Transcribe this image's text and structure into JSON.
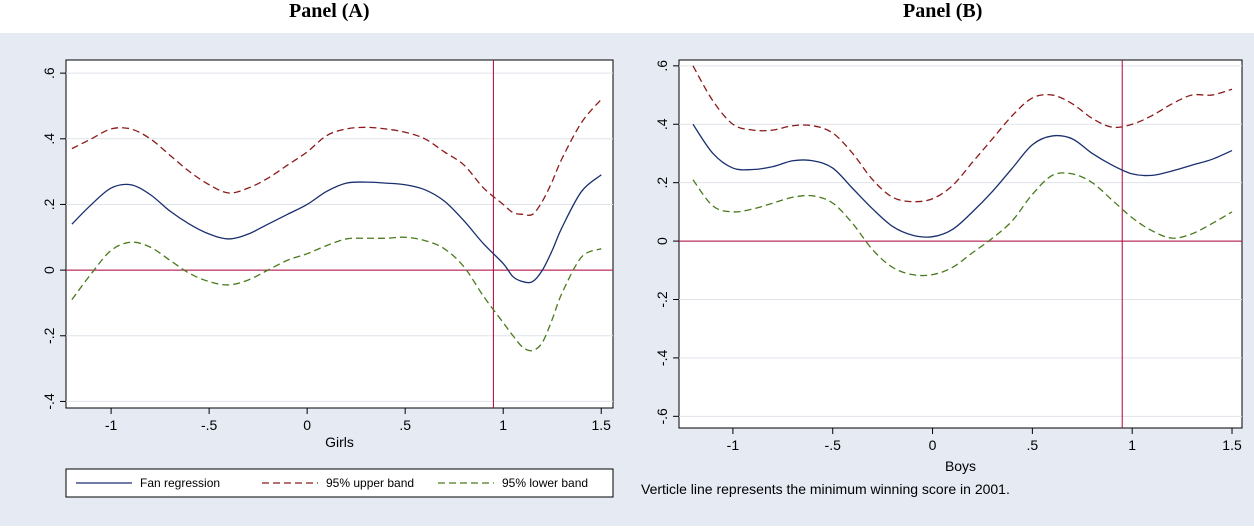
{
  "panels": {
    "a_title": "Panel (A)",
    "b_title": "Panel (B)"
  },
  "legend": [
    "Fan regression",
    "95% upper band",
    "95% lower band"
  ],
  "note": "Verticle line represents the minimum winning score in 2001.",
  "colors": {
    "fit": "#1a2f6e",
    "upper": "#8b1a1a",
    "lower": "#4a7a1e",
    "refline": "#b0003a",
    "grid": "#dfe3ea",
    "plotbg": "#ffffff",
    "panelbg": "#e5eaf3"
  },
  "chart_data": [
    {
      "type": "line",
      "title": "Panel (A)",
      "xlabel": "Girls",
      "ylabel": "",
      "xlim": [
        -1.23,
        1.56
      ],
      "ylim": [
        -0.42,
        0.64
      ],
      "xticks": [
        -1,
        -0.5,
        0,
        0.5,
        1,
        1.5
      ],
      "xtick_labels": [
        "-1",
        "-.5",
        "0",
        ".5",
        "1",
        "1.5"
      ],
      "yticks": [
        -0.4,
        -0.2,
        0,
        0.2,
        0.4,
        0.6
      ],
      "ytick_labels": [
        "-.4",
        "-.2",
        "0",
        ".2",
        ".4",
        ".6"
      ],
      "hline": 0,
      "vline": 0.95,
      "grid": true,
      "legend_position": "bottom",
      "x": [
        -1.2,
        -1.1,
        -1.0,
        -0.9,
        -0.8,
        -0.7,
        -0.6,
        -0.5,
        -0.4,
        -0.3,
        -0.2,
        -0.1,
        0.0,
        0.1,
        0.2,
        0.3,
        0.4,
        0.5,
        0.6,
        0.7,
        0.8,
        0.9,
        1.0,
        1.05,
        1.1,
        1.15,
        1.2,
        1.25,
        1.3,
        1.4,
        1.5
      ],
      "series": [
        {
          "name": "Fan regression",
          "style": "solid",
          "values": [
            0.14,
            0.2,
            0.25,
            0.26,
            0.23,
            0.18,
            0.14,
            0.11,
            0.095,
            0.11,
            0.14,
            0.17,
            0.2,
            0.24,
            0.265,
            0.268,
            0.265,
            0.26,
            0.245,
            0.21,
            0.15,
            0.08,
            0.02,
            -0.02,
            -0.035,
            -0.035,
            0.0,
            0.06,
            0.13,
            0.24,
            0.29
          ]
        },
        {
          "name": "95% upper band",
          "style": "dashed",
          "values": [
            0.37,
            0.4,
            0.43,
            0.43,
            0.4,
            0.35,
            0.3,
            0.26,
            0.235,
            0.25,
            0.28,
            0.32,
            0.36,
            0.41,
            0.43,
            0.435,
            0.43,
            0.42,
            0.4,
            0.36,
            0.32,
            0.25,
            0.2,
            0.175,
            0.17,
            0.17,
            0.21,
            0.27,
            0.34,
            0.45,
            0.52
          ]
        },
        {
          "name": "95% lower band",
          "style": "dashed",
          "values": [
            -0.09,
            -0.01,
            0.06,
            0.085,
            0.07,
            0.03,
            -0.01,
            -0.035,
            -0.045,
            -0.03,
            0.0,
            0.03,
            0.05,
            0.075,
            0.095,
            0.097,
            0.097,
            0.1,
            0.09,
            0.065,
            0.01,
            -0.08,
            -0.16,
            -0.2,
            -0.235,
            -0.245,
            -0.22,
            -0.15,
            -0.07,
            0.04,
            0.065
          ]
        }
      ]
    },
    {
      "type": "line",
      "title": "Panel (B)",
      "xlabel": "Boys",
      "ylabel": "",
      "xlim": [
        -1.27,
        1.55
      ],
      "ylim": [
        -0.64,
        0.62
      ],
      "xticks": [
        -1,
        -0.5,
        0,
        0.5,
        1,
        1.5
      ],
      "xtick_labels": [
        "-1",
        "-.5",
        "0",
        ".5",
        "1",
        "1.5"
      ],
      "yticks": [
        -0.6,
        -0.4,
        -0.2,
        0,
        0.2,
        0.4,
        0.6
      ],
      "ytick_labels": [
        "-.6",
        "-.4",
        "-.2",
        "0",
        ".2",
        ".4",
        ".6"
      ],
      "hline": 0,
      "vline": 0.95,
      "grid": true,
      "x": [
        -1.2,
        -1.1,
        -1.0,
        -0.9,
        -0.8,
        -0.7,
        -0.6,
        -0.5,
        -0.4,
        -0.3,
        -0.2,
        -0.1,
        0.0,
        0.1,
        0.2,
        0.3,
        0.4,
        0.5,
        0.6,
        0.7,
        0.8,
        0.9,
        1.0,
        1.1,
        1.2,
        1.3,
        1.4,
        1.5
      ],
      "series": [
        {
          "name": "Fan regression",
          "style": "solid",
          "values": [
            0.4,
            0.3,
            0.25,
            0.245,
            0.255,
            0.275,
            0.275,
            0.25,
            0.18,
            0.11,
            0.05,
            0.02,
            0.015,
            0.04,
            0.1,
            0.17,
            0.25,
            0.33,
            0.36,
            0.35,
            0.3,
            0.26,
            0.23,
            0.225,
            0.24,
            0.26,
            0.28,
            0.31
          ]
        },
        {
          "name": "95% upper band",
          "style": "dashed",
          "values": [
            0.6,
            0.48,
            0.4,
            0.38,
            0.38,
            0.395,
            0.395,
            0.37,
            0.3,
            0.21,
            0.15,
            0.135,
            0.145,
            0.19,
            0.27,
            0.35,
            0.43,
            0.49,
            0.5,
            0.47,
            0.42,
            0.39,
            0.4,
            0.43,
            0.47,
            0.5,
            0.5,
            0.52
          ]
        },
        {
          "name": "95% lower band",
          "style": "dashed",
          "values": [
            0.21,
            0.12,
            0.1,
            0.11,
            0.13,
            0.15,
            0.155,
            0.13,
            0.06,
            -0.03,
            -0.09,
            -0.115,
            -0.115,
            -0.09,
            -0.04,
            0.01,
            0.07,
            0.16,
            0.225,
            0.23,
            0.2,
            0.14,
            0.08,
            0.035,
            0.01,
            0.025,
            0.06,
            0.1
          ]
        }
      ]
    }
  ]
}
